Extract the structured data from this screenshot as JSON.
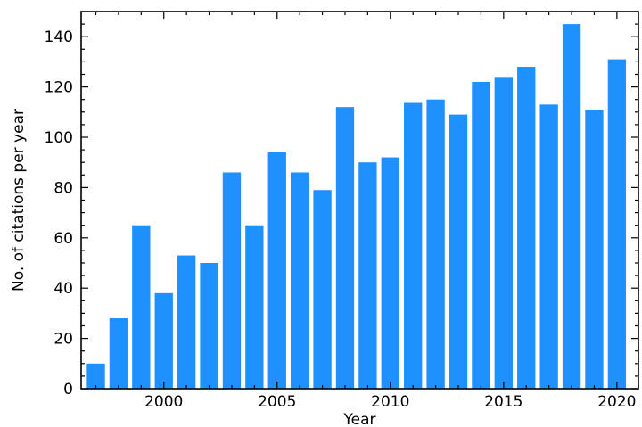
{
  "chart_data": {
    "type": "bar",
    "title": "",
    "xlabel": "Year",
    "ylabel": "No. of citations per year",
    "x": [
      1997,
      1998,
      1999,
      2000,
      2001,
      2002,
      2003,
      2004,
      2005,
      2006,
      2007,
      2008,
      2009,
      2010,
      2011,
      2012,
      2013,
      2014,
      2015,
      2016,
      2017,
      2018,
      2019,
      2020
    ],
    "values": [
      10,
      28,
      65,
      38,
      53,
      50,
      86,
      65,
      94,
      86,
      79,
      112,
      90,
      92,
      114,
      115,
      109,
      122,
      124,
      128,
      113,
      145,
      111,
      131
    ],
    "xlim": [
      1996.35,
      2020.95
    ],
    "ylim": [
      0,
      150
    ],
    "xticks": [
      2000,
      2005,
      2010,
      2015,
      2020
    ],
    "yticks": [
      0,
      20,
      40,
      60,
      80,
      100,
      120,
      140
    ],
    "bar_color": "#1e90ff",
    "grid": false,
    "legend": "none"
  }
}
